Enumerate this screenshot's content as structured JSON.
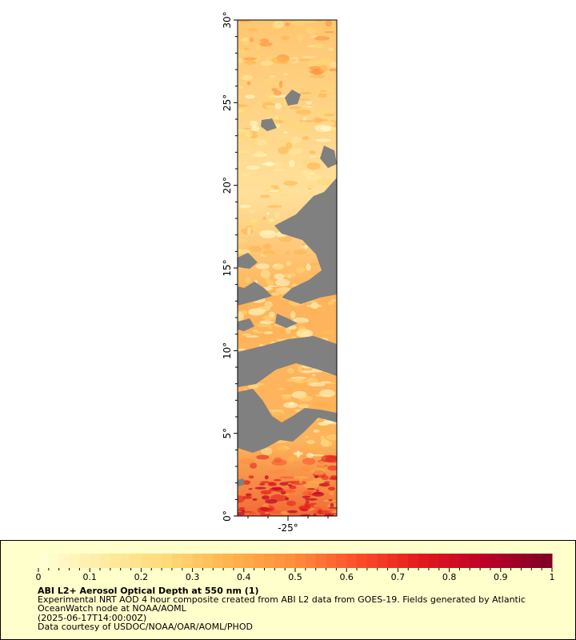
{
  "map": {
    "y_ticks": [
      "0°",
      "5°",
      "10°",
      "15°",
      "20°",
      "25°",
      "30°"
    ],
    "x_ticks": [
      "-25°"
    ],
    "no_data_color": "#808080"
  },
  "legend": {
    "tick_labels": [
      "0",
      "0.1",
      "0.2",
      "0.3",
      "0.4",
      "0.5",
      "0.6",
      "0.7",
      "0.8",
      "0.9",
      "1"
    ],
    "colors": [
      "#ffffd4",
      "#ffeaa0",
      "#fed976",
      "#feb24c",
      "#fd8d3c",
      "#fc4e2a",
      "#e31a1c",
      "#bd0026",
      "#800026"
    ],
    "title": "ABI L2+ Aerosol Optical Depth at 550 nm (1)",
    "description": "Experimental NRT AOD 4 hour composite created from ABI L2 data from GOES-19. Fields generated by Atlantic OceanWatch node at NOAA/AOML",
    "timestamp": "(2025-06-17T14:00:00Z)",
    "credit": "Data courtesy of USDOC/NOAA/OAR/AOML/PHOD",
    "background": "#ffffcc"
  }
}
